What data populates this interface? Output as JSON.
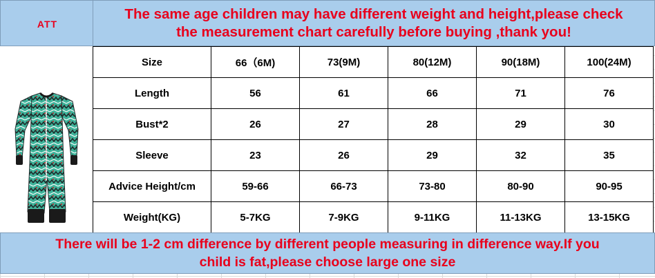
{
  "header": {
    "left_label": "ATT",
    "notice_line1": "The same age children may have different weight and height,please check",
    "notice_line2": "the measurement chart carefully before buying ,thank you!"
  },
  "product": {
    "image": "baby-romper-icon"
  },
  "size_chart": {
    "rows": [
      {
        "label": "Size",
        "values": [
          "66（6M)",
          "73(9M)",
          "80(12M)",
          "90(18M)",
          "100(24M)"
        ]
      },
      {
        "label": "Length",
        "values": [
          "56",
          "61",
          "66",
          "71",
          "76"
        ]
      },
      {
        "label": "Bust*2",
        "values": [
          "26",
          "27",
          "28",
          "29",
          "30"
        ]
      },
      {
        "label": "Sleeve",
        "values": [
          "23",
          "26",
          "29",
          "32",
          "35"
        ]
      },
      {
        "label": "Advice Height/cm",
        "values": [
          "59-66",
          "66-73",
          "73-80",
          "80-90",
          "90-95"
        ]
      },
      {
        "label": "Weight(KG)",
        "values": [
          "5-7KG",
          "7-9KG",
          "9-11KG",
          "11-13KG",
          "13-15KG"
        ]
      }
    ]
  },
  "footer": {
    "notice_line1": "There will be 1-2 cm difference by different people measuring in difference way.If you",
    "notice_line2": "child is fat,please choose large one size"
  },
  "colors": {
    "banner": "#a9cdec",
    "notice_text": "#e8001c"
  }
}
